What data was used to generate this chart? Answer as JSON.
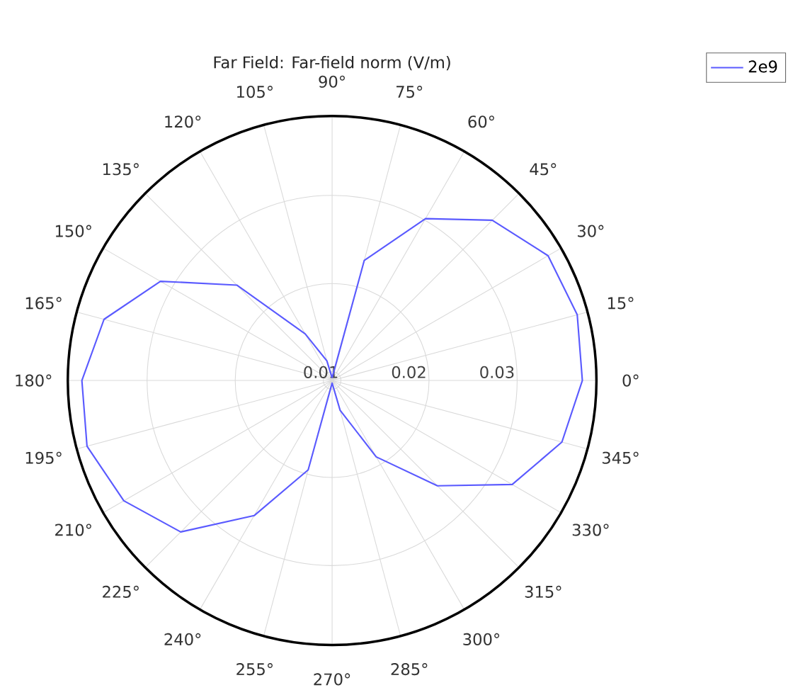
{
  "chart_data": {
    "type": "radar",
    "title": "Far Field: Far-field norm (V/m)",
    "categories": [
      "90°",
      "75°",
      "60°",
      "45°",
      "30°",
      "15°",
      "0°",
      "345°",
      "330°",
      "315°",
      "300°",
      "285°",
      "270°",
      "255°",
      "240°",
      "225°",
      "210°",
      "195°",
      "180°",
      "165°",
      "150°",
      "135°",
      "120°",
      "105°"
    ],
    "series": [
      {
        "name": "2e9",
        "color": "#5a5aff",
        "values": [
          0.0093,
          0.0231,
          0.0302,
          0.0347,
          0.0373,
          0.0378,
          0.0374,
          0.036,
          0.0326,
          0.0259,
          0.019,
          0.0125,
          0.0093,
          0.0195,
          0.0267,
          0.0333,
          0.0363,
          0.0378,
          0.0374,
          0.0358,
          0.0315,
          0.0243,
          0.0151,
          0.0113
        ]
      }
    ],
    "ylim": [
      0.009,
      0.039
    ],
    "yticks": [
      0.01,
      0.02,
      0.03
    ],
    "grid": true,
    "legend": "top right",
    "marker": "none",
    "line_style": "solid"
  }
}
